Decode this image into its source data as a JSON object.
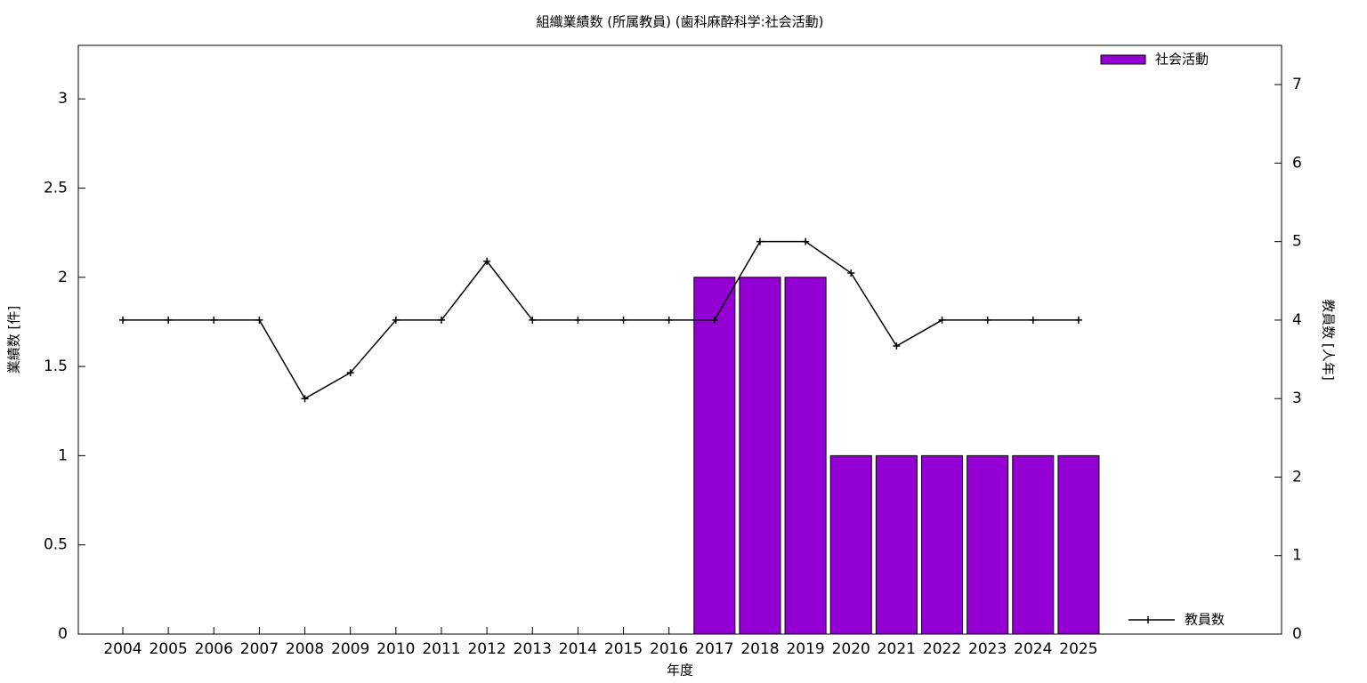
{
  "chart_data": {
    "type": "bar",
    "title": "組織業績数 (所属教員) (歯科麻酔科学:社会活動)",
    "x_label": "年度",
    "y_label": "業績数 [件]",
    "y2_label": "教員数 [人年]",
    "categories": [
      "2004",
      "2005",
      "2006",
      "2007",
      "2008",
      "2009",
      "2010",
      "2011",
      "2012",
      "2013",
      "2014",
      "2015",
      "2016",
      "2017",
      "2018",
      "2019",
      "2020",
      "2021",
      "2022",
      "2023",
      "2024",
      "2025"
    ],
    "series": [
      {
        "name": "社会活動",
        "type": "bar",
        "color": "#9400d3",
        "axis": "y",
        "values": [
          null,
          null,
          null,
          null,
          null,
          null,
          null,
          null,
          null,
          null,
          null,
          null,
          null,
          2,
          2,
          2,
          1,
          1,
          1,
          1,
          1,
          1
        ]
      },
      {
        "name": "教員数",
        "type": "line",
        "color": "#000000",
        "axis": "y2",
        "values": [
          4,
          4,
          4,
          4,
          3,
          3.33,
          4,
          4,
          4.75,
          4,
          4,
          4,
          4,
          4,
          5,
          5,
          4.6,
          3.67,
          4,
          4,
          4,
          4
        ]
      }
    ],
    "ylim": [
      0,
      3.3
    ],
    "yticks": [
      0,
      0.5,
      1,
      1.5,
      2,
      2.5,
      3
    ],
    "y2lim": [
      0,
      7.5
    ],
    "y2ticks": [
      0,
      1,
      2,
      3,
      4,
      5,
      6,
      7
    ],
    "grid": false
  }
}
